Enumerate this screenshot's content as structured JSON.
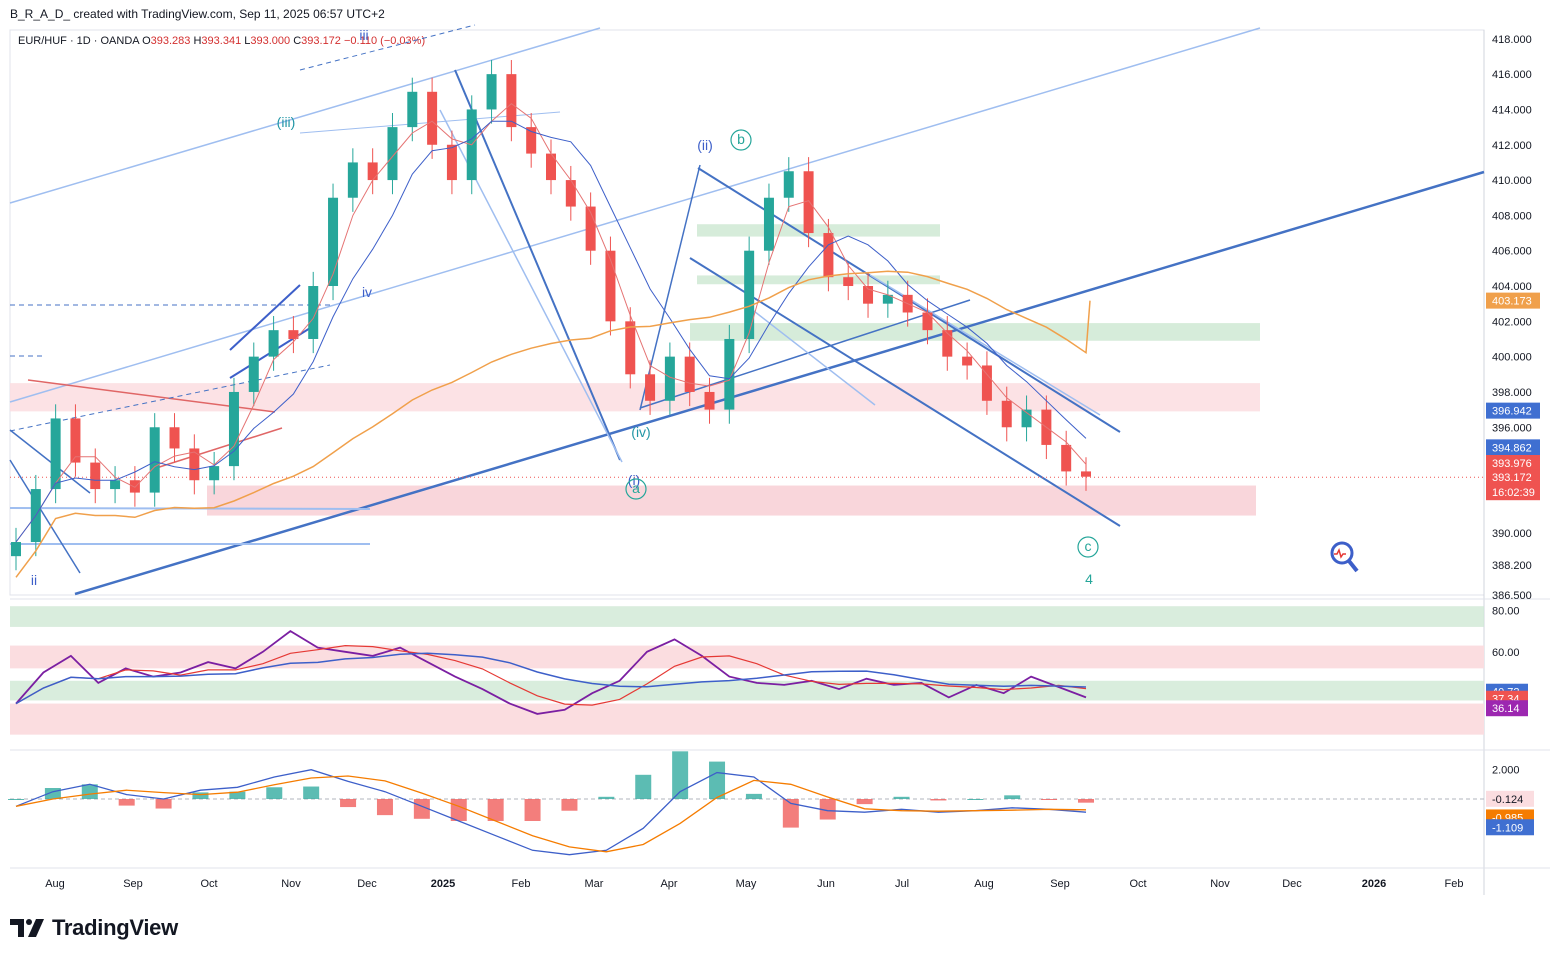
{
  "header": {
    "text": "B_R_A_D_ created with TradingView.com, Sep 11, 2025 06:57 UTC+2"
  },
  "symbol_line": {
    "symbol": "EUR/HUF · 1D · OANDA",
    "open_label": "O",
    "open": "393.283",
    "high_label": "H",
    "high": "393.341",
    "low_label": "L",
    "low": "393.000",
    "close_label": "C",
    "close": "393.172",
    "change": "−0.110 (−0.03%)"
  },
  "footer": {
    "brand": "TradingView"
  },
  "colors": {
    "up": "#26a69a",
    "down": "#ef5350",
    "trend_blue": "#4472c4",
    "light_blue": "#9fbef0",
    "ma_orange": "#f0a04b",
    "rsi_purple": "#7b1fa2",
    "green_zone": "#cfe9d4",
    "red_zone": "#fbdde0"
  },
  "chart_data": [
    {
      "type": "candlestick",
      "title": "EUR/HUF · 1D · OANDA",
      "ylim": [
        386.5,
        418.5
      ],
      "price_ticks": [
        "418.000",
        "416.000",
        "414.000",
        "412.000",
        "410.000",
        "408.000",
        "406.000",
        "404.000",
        "402.000",
        "400.000",
        "398.000",
        "396.000",
        "390.000",
        "388.200",
        "386.500"
      ],
      "time_labels": [
        "Aug",
        "Sep",
        "Oct",
        "Nov",
        "Dec",
        "2025",
        "Feb",
        "Mar",
        "Apr",
        "May",
        "Jun",
        "Jul",
        "Aug",
        "Sep",
        "Oct",
        "Nov",
        "Dec",
        "2026",
        "Feb"
      ],
      "price_badges": [
        {
          "value": "403.173",
          "color": "#f0a04b"
        },
        {
          "value": "396.942",
          "color": "#3f6fd1"
        },
        {
          "value": "394.862",
          "color": "#3f6fd1"
        },
        {
          "value": "393.976",
          "color": "#ef5350"
        },
        {
          "value": "393.172",
          "color": "#ef5350"
        },
        {
          "value": "16:02:39",
          "color": "#ef5350"
        }
      ],
      "wave_labels": [
        "iii",
        "(iii)",
        "iv",
        "ii",
        "(ii)",
        "b",
        "(iv)",
        "(i)",
        "a",
        "c",
        "4"
      ],
      "series": [
        {
          "name": "close",
          "values": [
            389.5,
            392.5,
            396.5,
            394,
            392.5,
            393,
            392.3,
            396,
            394.8,
            393,
            393.8,
            398,
            400,
            401.5,
            401,
            404,
            409,
            411,
            410,
            413,
            415,
            412,
            410,
            414,
            416,
            413,
            411.5,
            410,
            408.5,
            406,
            402,
            399,
            397.5,
            400,
            398,
            397,
            401,
            406,
            409,
            410.5,
            407,
            404.5,
            404,
            403,
            403.5,
            402.5,
            401.5,
            400,
            399.5,
            397.5,
            396,
            397,
            395,
            393.5,
            393.2
          ]
        }
      ]
    },
    {
      "type": "line",
      "title": "RSI",
      "ylim": [
        15,
        85
      ],
      "ticks": [
        "80.00",
        "60.00"
      ],
      "badges": [
        {
          "value": "40.72",
          "color": "#3f6fd1"
        },
        {
          "value": "37.34",
          "color": "#ef5350"
        },
        {
          "value": "36.14",
          "color": "#9c27b0"
        }
      ]
    },
    {
      "type": "bar",
      "title": "MACD",
      "ylim": [
        -4.5,
        3.0
      ],
      "ticks": [
        "2.000"
      ],
      "badges": [
        {
          "value": "-0.124",
          "color": "#fbdde0"
        },
        {
          "value": "-0.985",
          "color": "#f57c00"
        },
        {
          "value": "-1.109",
          "color": "#3f6fd1"
        }
      ]
    }
  ]
}
